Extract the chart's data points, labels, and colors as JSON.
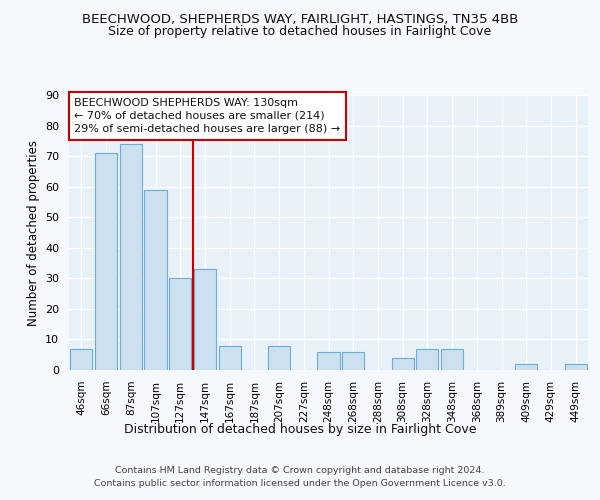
{
  "title": "BEECHWOOD, SHEPHERDS WAY, FAIRLIGHT, HASTINGS, TN35 4BB",
  "subtitle": "Size of property relative to detached houses in Fairlight Cove",
  "xlabel": "Distribution of detached houses by size in Fairlight Cove",
  "ylabel": "Number of detached properties",
  "categories": [
    "46sqm",
    "66sqm",
    "87sqm",
    "107sqm",
    "127sqm",
    "147sqm",
    "167sqm",
    "187sqm",
    "207sqm",
    "227sqm",
    "248sqm",
    "268sqm",
    "288sqm",
    "308sqm",
    "328sqm",
    "348sqm",
    "368sqm",
    "389sqm",
    "409sqm",
    "429sqm",
    "449sqm"
  ],
  "values": [
    7,
    71,
    74,
    59,
    30,
    33,
    8,
    0,
    8,
    0,
    6,
    6,
    0,
    4,
    7,
    7,
    0,
    0,
    2,
    0,
    2
  ],
  "bar_color": "#cce0f0",
  "bar_edge_color": "#6aaed6",
  "background_color": "#e8f0f8",
  "grid_color": "#ffffff",
  "fig_bg_color": "#f5f8fc",
  "ylim": [
    0,
    90
  ],
  "yticks": [
    0,
    10,
    20,
    30,
    40,
    50,
    60,
    70,
    80,
    90
  ],
  "property_line_x": 4.5,
  "property_line_color": "#cc0000",
  "annotation_text": "BEECHWOOD SHEPHERDS WAY: 130sqm\n← 70% of detached houses are smaller (214)\n29% of semi-detached houses are larger (88) →",
  "footer_line1": "Contains HM Land Registry data © Crown copyright and database right 2024.",
  "footer_line2": "Contains public sector information licensed under the Open Government Licence v3.0.",
  "title_fontsize": 9.5,
  "subtitle_fontsize": 9,
  "annotation_box_color": "#ffffff",
  "annotation_box_edge": "#cc0000",
  "annotation_fontsize": 8
}
